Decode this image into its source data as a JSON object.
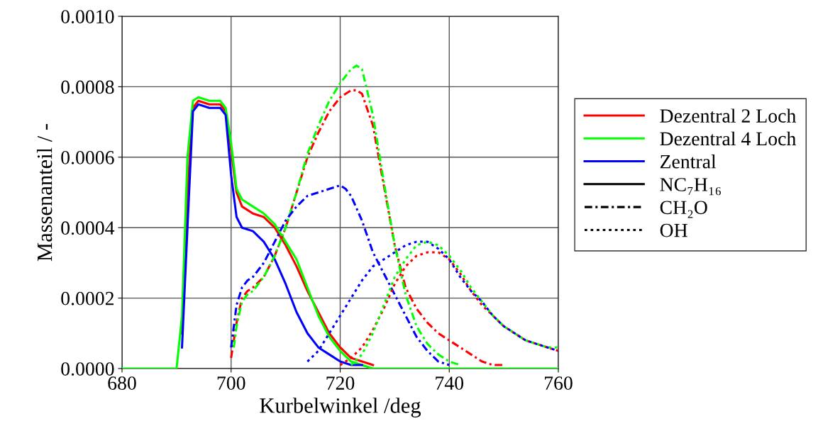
{
  "chart_data": {
    "type": "line",
    "xlabel": "Kurbelwinkel /deg",
    "ylabel": "Massenanteil / -",
    "xlim": [
      680,
      760
    ],
    "xticks": [
      680,
      700,
      720,
      740,
      760
    ],
    "ylim": [
      0,
      0.001
    ],
    "yticks": [
      {
        "value": 0,
        "label": "0.0000"
      },
      {
        "value": 0.0002,
        "label": "0.0002"
      },
      {
        "value": 0.0004,
        "label": "0.0004"
      },
      {
        "value": 0.0006,
        "label": "0.0006"
      },
      {
        "value": 0.0008,
        "label": "0.0008"
      },
      {
        "value": 0.001,
        "label": "0.0010"
      }
    ],
    "grid": true,
    "legend": "right",
    "marker": "none",
    "series": [
      {
        "name": "Dezentral 2 Loch",
        "color": "#ff0000",
        "line_style": "solid",
        "x": [
          691,
          692,
          693,
          694,
          696,
          698,
          699,
          700,
          701,
          702,
          704,
          706,
          708,
          710,
          712,
          714,
          716,
          718,
          720,
          722,
          724,
          726
        ],
        "values": [
          0.0001,
          0.0005,
          0.00074,
          0.00076,
          0.00075,
          0.00075,
          0.00073,
          0.00062,
          0.0005,
          0.00046,
          0.00044,
          0.00043,
          0.0004,
          0.00035,
          0.00029,
          0.00022,
          0.00016,
          0.0001,
          6e-05,
          3e-05,
          2e-05,
          1e-05
        ]
      },
      {
        "name": "Dezentral 4 Loch",
        "color": "#00ff00",
        "line_style": "solid",
        "x": [
          680,
          690,
          691,
          692,
          693,
          694,
          696,
          698,
          699,
          700,
          701,
          702,
          704,
          706,
          708,
          710,
          712,
          714,
          716,
          718,
          720,
          722,
          724,
          726,
          760
        ],
        "values": [
          0,
          0,
          0.00015,
          0.0006,
          0.00076,
          0.00077,
          0.00076,
          0.00076,
          0.00074,
          0.00064,
          0.00051,
          0.00048,
          0.00046,
          0.00044,
          0.00041,
          0.00036,
          0.00031,
          0.00023,
          0.00015,
          9e-05,
          5e-05,
          2e-05,
          1e-05,
          0,
          0
        ]
      },
      {
        "name": "Zentral",
        "color": "#0000ff",
        "line_style": "solid",
        "x": [
          691,
          692,
          693,
          694,
          696,
          698,
          699,
          700,
          701,
          702,
          704,
          706,
          708,
          710,
          712,
          714,
          716,
          718,
          720,
          722,
          724
        ],
        "values": [
          6e-05,
          0.0004,
          0.00073,
          0.00075,
          0.00074,
          0.00074,
          0.00072,
          0.00055,
          0.00043,
          0.0004,
          0.00039,
          0.00036,
          0.00031,
          0.00024,
          0.00016,
          0.0001,
          6e-05,
          4e-05,
          2e-05,
          1e-05,
          1e-05
        ]
      },
      {
        "color": "#ff0000",
        "line_style": "dashdot",
        "x": [
          700,
          701,
          702,
          703,
          704,
          706,
          708,
          710,
          712,
          714,
          716,
          718,
          720,
          722,
          723,
          724,
          726,
          728,
          730,
          732,
          734,
          736,
          738,
          740,
          742,
          744,
          746,
          748,
          750
        ],
        "values": [
          3e-05,
          0.00013,
          0.0002,
          0.00022,
          0.00023,
          0.00026,
          0.00032,
          0.0004,
          0.0005,
          0.0006,
          0.00067,
          0.00073,
          0.00077,
          0.00079,
          0.00079,
          0.00078,
          0.00069,
          0.00052,
          0.00035,
          0.00023,
          0.00017,
          0.00013,
          0.0001,
          8e-05,
          6e-05,
          4e-05,
          2e-05,
          1e-05,
          1e-05
        ]
      },
      {
        "color": "#00ff00",
        "line_style": "dashdot",
        "x": [
          700.5,
          701,
          702,
          703,
          704,
          706,
          708,
          710,
          712,
          714,
          716,
          718,
          720,
          722,
          723,
          724,
          726,
          728,
          730,
          732,
          734,
          736,
          738,
          740,
          742
        ],
        "values": [
          6e-05,
          0.00012,
          0.00019,
          0.00021,
          0.00022,
          0.00026,
          0.00032,
          0.0004,
          0.0005,
          0.00061,
          0.00069,
          0.00076,
          0.00081,
          0.00085,
          0.00086,
          0.00085,
          0.00072,
          0.00053,
          0.00035,
          0.00021,
          0.00012,
          7e-05,
          4e-05,
          2e-05,
          1e-05
        ]
      },
      {
        "color": "#0000ff",
        "line_style": "dashdot",
        "x": [
          700,
          701,
          702,
          703,
          704,
          706,
          708,
          710,
          712,
          714,
          716,
          718,
          720,
          721,
          722,
          724,
          726,
          728,
          730,
          732,
          734,
          736,
          738,
          740
        ],
        "values": [
          6e-05,
          0.00018,
          0.00023,
          0.00025,
          0.00026,
          0.0003,
          0.00036,
          0.00042,
          0.00046,
          0.00049,
          0.0005,
          0.00051,
          0.00052,
          0.00051,
          0.00049,
          0.00042,
          0.00033,
          0.00027,
          0.00021,
          0.00015,
          9e-05,
          5e-05,
          2e-05,
          1e-05
        ]
      },
      {
        "color": "#ff0000",
        "line_style": "dotted",
        "x": [
          720,
          722,
          724,
          726,
          728,
          730,
          732,
          734,
          736,
          738,
          740,
          742,
          744,
          746,
          748,
          750,
          752,
          754,
          756,
          758,
          760
        ],
        "values": [
          1e-05,
          3e-05,
          6e-05,
          0.00011,
          0.00017,
          0.00024,
          0.00029,
          0.00032,
          0.00033,
          0.00033,
          0.00031,
          0.00027,
          0.00022,
          0.00018,
          0.00015,
          0.00012,
          0.0001,
          8e-05,
          7e-05,
          6e-05,
          5e-05
        ]
      },
      {
        "color": "#00ff00",
        "line_style": "dotted",
        "x": [
          722,
          724,
          726,
          728,
          730,
          732,
          734,
          736,
          738,
          740,
          742,
          744,
          746,
          748,
          750,
          752,
          754,
          756,
          758,
          760
        ],
        "values": [
          1e-05,
          4e-05,
          0.0001,
          0.00018,
          0.00026,
          0.00031,
          0.00035,
          0.00036,
          0.00035,
          0.00032,
          0.00028,
          0.00023,
          0.00019,
          0.00015,
          0.00012,
          0.0001,
          8e-05,
          7e-05,
          6e-05,
          6e-05
        ]
      },
      {
        "color": "#0000ff",
        "line_style": "dotted",
        "x": [
          714,
          716,
          718,
          720,
          722,
          724,
          726,
          728,
          730,
          732,
          734,
          736,
          738,
          740,
          742,
          744,
          746,
          748,
          750,
          752,
          754,
          756,
          758,
          760
        ],
        "values": [
          2e-05,
          5e-05,
          0.0001,
          0.00015,
          0.0002,
          0.00025,
          0.00029,
          0.00031,
          0.00033,
          0.00035,
          0.00036,
          0.00036,
          0.00034,
          0.00031,
          0.00026,
          0.00022,
          0.00019,
          0.00015,
          0.00012,
          0.0001,
          8e-05,
          7e-05,
          6e-05,
          5e-05
        ]
      },
      {
        "name": "NC₇H₁₆",
        "color": "#000000",
        "line_style": "solid"
      },
      {
        "name": "CH₂O",
        "color": "#000000",
        "line_style": "dashdot"
      },
      {
        "name": "OH",
        "color": "#000000",
        "line_style": "dotted"
      }
    ]
  }
}
